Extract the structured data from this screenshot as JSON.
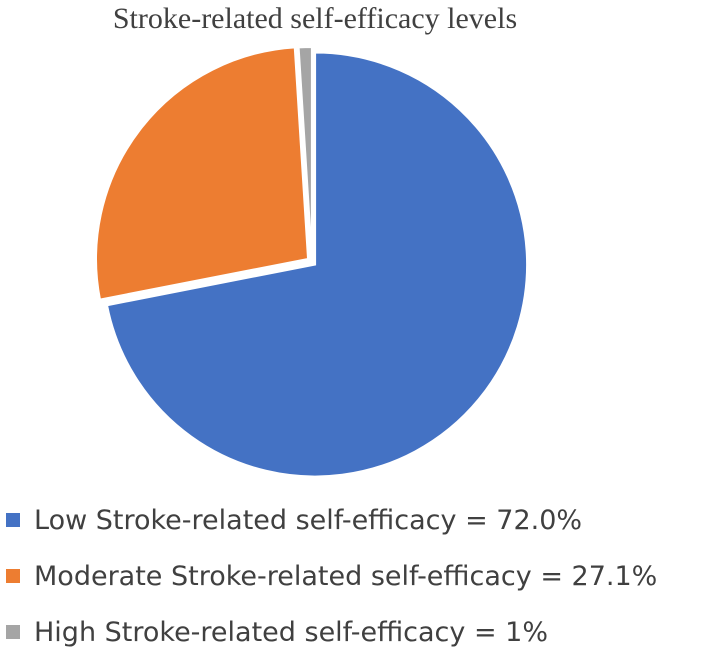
{
  "chart_data": {
    "type": "pie",
    "title": "Stroke-related self-efficacy levels",
    "start_angle_deg": 0,
    "direction": "clockwise",
    "exploded": true,
    "legend_position": "bottom",
    "slices": [
      {
        "label": "Low Stroke-related self-efficacy = 72.0%",
        "value": 72.0,
        "color": "#4472C4"
      },
      {
        "label": "Moderate Stroke-related self-efficacy = 27.1%",
        "value": 27.1,
        "color": "#ED7D31"
      },
      {
        "label": "High Stroke-related self-efficacy = 1%",
        "value": 1,
        "color": "#A5A5A5"
      }
    ]
  }
}
